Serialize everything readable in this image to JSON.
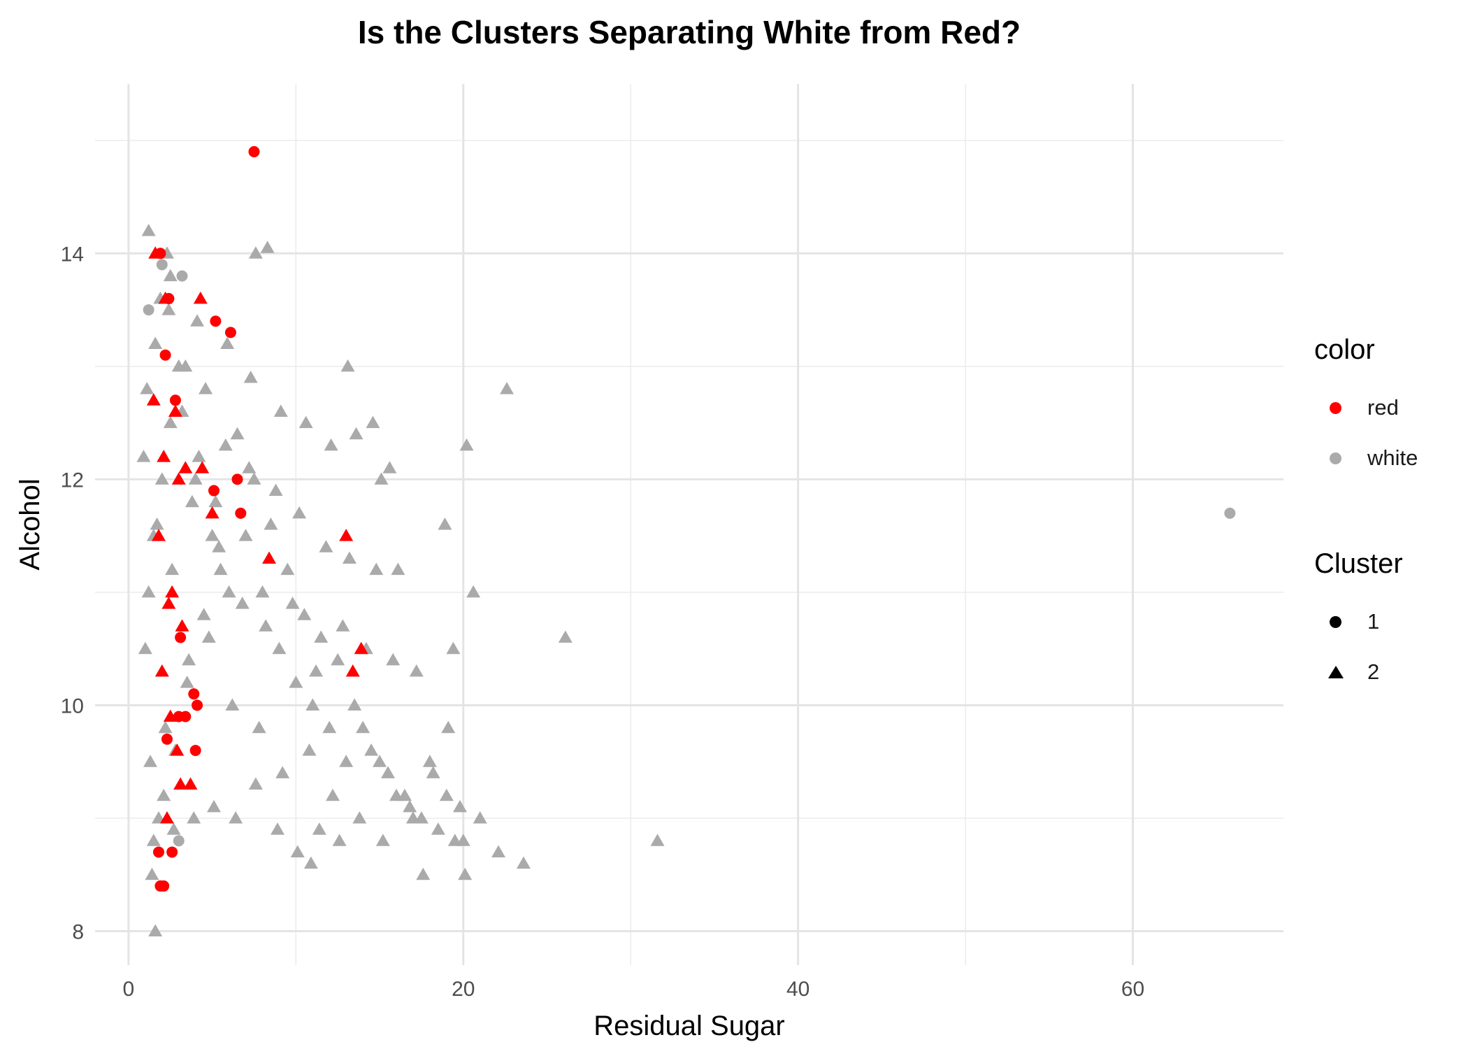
{
  "chart_data": {
    "type": "scatter",
    "title": "Is the Clusters Separating White from Red?",
    "xlabel": "Residual Sugar",
    "ylabel": "Alcohol",
    "xlim": [
      -2,
      69
    ],
    "ylim": [
      7.7,
      15.5
    ],
    "x_ticks": [
      0,
      20,
      40,
      60
    ],
    "y_ticks": [
      8,
      10,
      12,
      14
    ],
    "x_minor_ticks": [
      10,
      30,
      50
    ],
    "y_minor_ticks": [
      9,
      11,
      13,
      15
    ],
    "grid": true,
    "legend_position": "right",
    "legends": [
      {
        "title": "color",
        "entries": [
          {
            "label": "red",
            "color": "#ff0000",
            "shape": "circle"
          },
          {
            "label": "white",
            "color": "#aaaaaa",
            "shape": "circle"
          }
        ]
      },
      {
        "title": "Cluster",
        "entries": [
          {
            "label": "1",
            "color": "#000000",
            "shape": "circle"
          },
          {
            "label": "2",
            "color": "#000000",
            "shape": "triangle"
          }
        ]
      }
    ],
    "series": [
      {
        "color": "white",
        "cluster": "2",
        "x": [
          1.0,
          1.2,
          1.5,
          2.0,
          2.5,
          3.0,
          4.0,
          5.0,
          6.0,
          1.3,
          1.8,
          2.2,
          3.5,
          4.5,
          5.5,
          7.0,
          8.0,
          9.0,
          10.0,
          11.0,
          12.0,
          13.0,
          14.0,
          15.0,
          16.0,
          17.0,
          18.0,
          19.0,
          20.0,
          21.0,
          1.1,
          1.6,
          2.4,
          3.2,
          4.2,
          5.2,
          6.5,
          7.5,
          8.5,
          9.5,
          10.5,
          11.5,
          12.5,
          13.5,
          14.5,
          15.5,
          16.5,
          17.5,
          18.5,
          19.5,
          1.4,
          2.1,
          2.8,
          3.6,
          4.8,
          6.2,
          7.8,
          9.2,
          10.8,
          12.2,
          13.8,
          15.2,
          16.8,
          18.2,
          19.8,
          0.9,
          1.7,
          2.6,
          3.8,
          5.4,
          6.8,
          8.2,
          9.8,
          11.2,
          12.8,
          14.2,
          15.8,
          17.2,
          1.9,
          2.3,
          3.4,
          4.6,
          5.8,
          7.2,
          8.8,
          10.2,
          11.8,
          13.2,
          14.8,
          1.5,
          2.7,
          3.9,
          5.1,
          6.4,
          7.6,
          8.9,
          10.1,
          11.4,
          12.6,
          1.2,
          2.5,
          4.1,
          5.9,
          7.3,
          9.1,
          10.6,
          12.1,
          13.6,
          15.1,
          22.6,
          26.1,
          31.6,
          23.6,
          22.1,
          20.1,
          20.6,
          20.2,
          18.9,
          19.4,
          8.3,
          7.6,
          1.6,
          10.9,
          15.6,
          14.6,
          13.1,
          16.1,
          19.1,
          17.6
        ],
        "y": [
          10.5,
          11.0,
          11.5,
          12.0,
          12.5,
          13.0,
          12.0,
          11.5,
          11.0,
          9.5,
          9.0,
          9.8,
          10.2,
          10.8,
          11.2,
          11.5,
          11.0,
          10.5,
          10.2,
          10.0,
          9.8,
          9.5,
          9.8,
          9.5,
          9.2,
          9.0,
          9.5,
          9.2,
          8.8,
          9.0,
          12.8,
          13.2,
          13.5,
          12.6,
          12.2,
          11.8,
          12.4,
          12.0,
          11.6,
          11.2,
          10.8,
          10.6,
          10.4,
          10.0,
          9.6,
          9.4,
          9.2,
          9.0,
          8.9,
          8.8,
          8.5,
          9.2,
          9.6,
          10.4,
          10.6,
          10.0,
          9.8,
          9.4,
          9.6,
          9.2,
          9.0,
          8.8,
          9.1,
          9.4,
          9.1,
          12.2,
          11.6,
          11.2,
          11.8,
          11.4,
          10.9,
          10.7,
          10.9,
          10.3,
          10.7,
          10.5,
          10.4,
          10.3,
          13.6,
          14.0,
          13.0,
          12.8,
          12.3,
          12.1,
          11.9,
          11.7,
          11.4,
          11.3,
          11.2,
          8.8,
          8.9,
          9.0,
          9.1,
          9.0,
          9.3,
          8.9,
          8.7,
          8.9,
          8.8,
          14.2,
          13.8,
          13.4,
          13.2,
          12.9,
          12.6,
          12.5,
          12.3,
          12.4,
          12.0,
          12.8,
          10.6,
          8.8,
          8.6,
          8.7,
          8.5,
          11.0,
          12.3,
          11.6,
          10.5,
          14.05,
          14.0,
          8.0,
          8.6,
          12.1,
          12.5,
          13.0,
          11.2,
          9.8,
          8.5
        ]
      },
      {
        "color": "white",
        "cluster": "1",
        "x": [
          1.2,
          2.0,
          3.2,
          3.0,
          65.8
        ],
        "y": [
          13.5,
          13.9,
          13.8,
          8.8,
          11.7
        ]
      },
      {
        "color": "red",
        "cluster": "1",
        "x": [
          7.5,
          1.9,
          2.4,
          5.2,
          6.1,
          2.2,
          5.1,
          6.7,
          3.1,
          3.4,
          3.9,
          4.1,
          1.8,
          2.1,
          2.6,
          1.9,
          3.0,
          2.3,
          4.0,
          6.5,
          2.8
        ],
        "y": [
          14.9,
          14.0,
          13.6,
          13.4,
          13.3,
          13.1,
          11.9,
          11.7,
          10.6,
          9.9,
          10.1,
          10.0,
          8.7,
          8.4,
          8.7,
          8.4,
          9.9,
          9.7,
          9.6,
          12.0,
          12.7
        ]
      },
      {
        "color": "red",
        "cluster": "2",
        "x": [
          1.6,
          2.2,
          2.8,
          3.4,
          4.4,
          5.0,
          1.8,
          2.6,
          3.2,
          2.0,
          2.9,
          3.7,
          13.0,
          13.9,
          13.4,
          8.4,
          4.3,
          2.3,
          3.1,
          2.5,
          1.5,
          2.1,
          3.0,
          2.4
        ],
        "y": [
          14.0,
          13.6,
          12.6,
          12.1,
          12.1,
          11.7,
          11.5,
          11.0,
          10.7,
          10.3,
          9.6,
          9.3,
          11.5,
          10.5,
          10.3,
          11.3,
          13.6,
          9.0,
          9.3,
          9.9,
          12.7,
          12.2,
          12.0,
          10.9
        ]
      }
    ]
  }
}
